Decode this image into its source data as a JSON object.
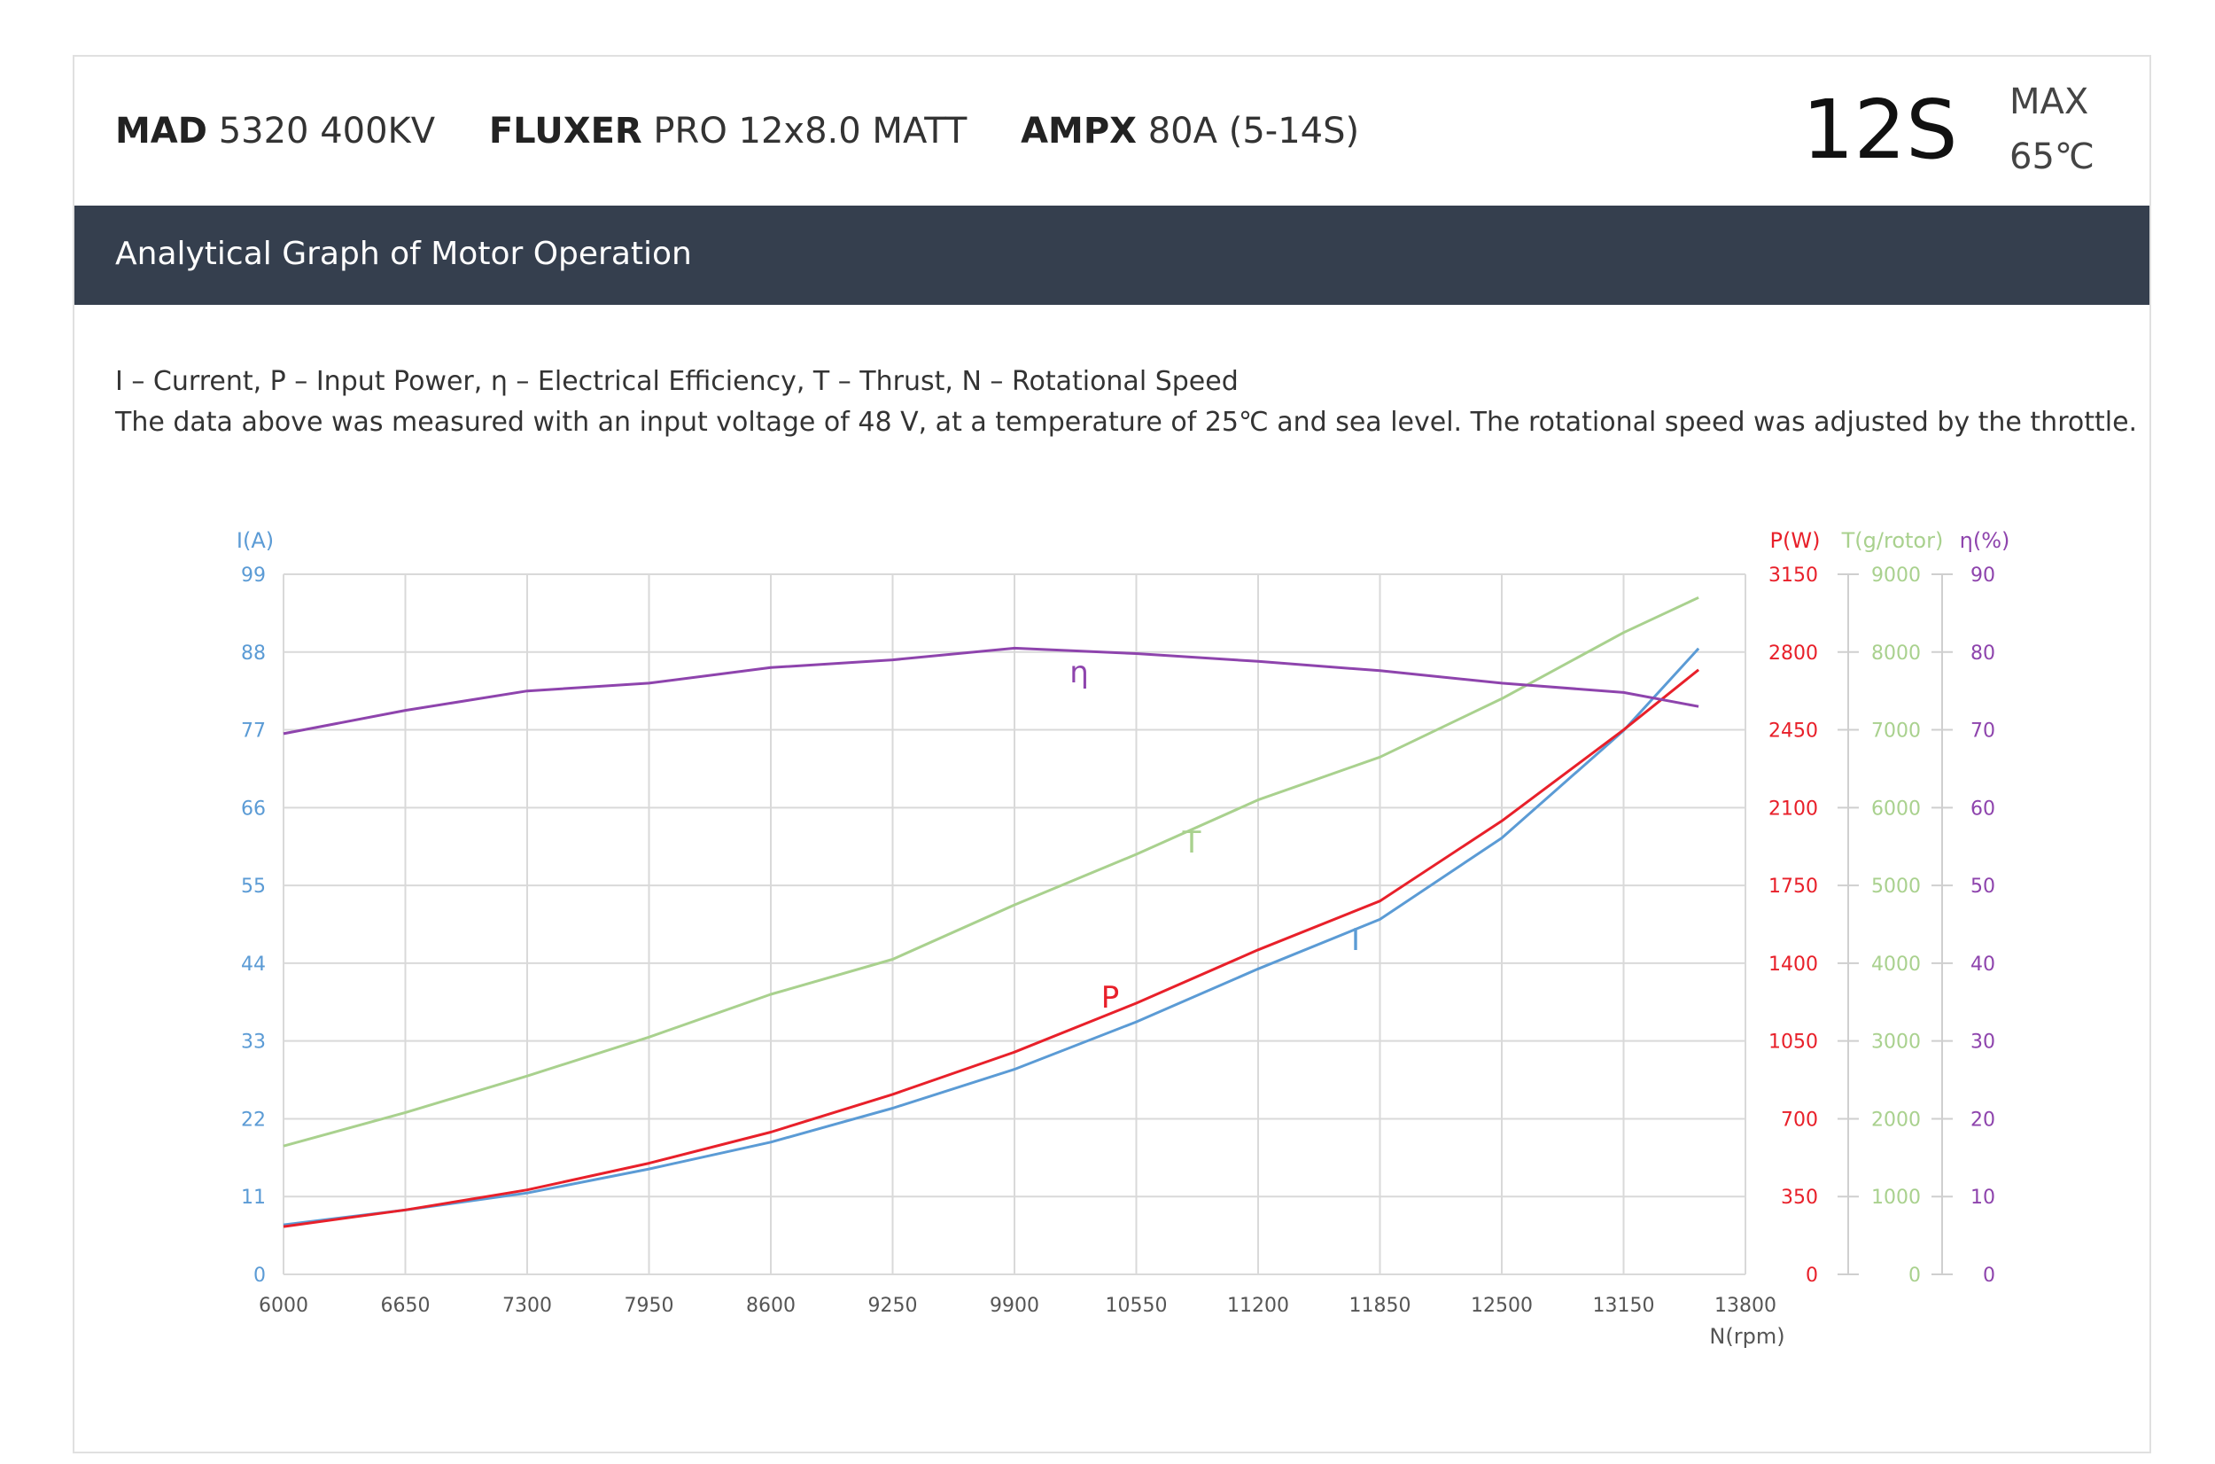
{
  "header": {
    "products": [
      {
        "brand": "MAD",
        "model": "5320 400KV"
      },
      {
        "brand": "FLUXER",
        "model": "PRO 12x8.0 MATT"
      },
      {
        "brand": "AMPX",
        "model": "80A (5-14S)"
      }
    ],
    "cells": "12S",
    "max_label": "MAX",
    "max_temp": "65℃"
  },
  "banner": {
    "title": "Analytical Graph of Motor Operation"
  },
  "notes": {
    "legend": "I – Current, P – Input Power, η – Electrical Efficiency, T – Thrust,   N – Rotational Speed",
    "conditions": "The data above was measured with an input voltage of 48 V, at a temperature of 25℃ and sea level. The rotational speed was adjusted by the throttle."
  },
  "colors": {
    "current": "#5b9bd5",
    "power": "#e8202a",
    "thrust": "#a9d18e",
    "efficiency": "#8e44ad",
    "banner": "#353f4e",
    "grid": "#d9d9d9"
  },
  "chart_data": {
    "type": "line",
    "xlabel": "N(rpm)",
    "xlim": [
      6000,
      13800
    ],
    "x_ticks": [
      "6000",
      "6650",
      "7300",
      "7950",
      "8600",
      "9250",
      "9900",
      "10550",
      "11200",
      "11850",
      "12500",
      "13150",
      "13800"
    ],
    "axes": {
      "current": {
        "label": "I(A)",
        "min": 0,
        "max": 99,
        "ticks": [
          "0",
          "11",
          "22",
          "33",
          "44",
          "55",
          "66",
          "77",
          "88",
          "99"
        ]
      },
      "power": {
        "label": "P(W)",
        "min": 0,
        "max": 3150,
        "ticks": [
          "0",
          "350",
          "700",
          "1050",
          "1400",
          "1750",
          "2100",
          "2450",
          "2800",
          "3150"
        ]
      },
      "thrust": {
        "label": "T(g/rotor)",
        "min": 0,
        "max": 9000,
        "ticks": [
          "0",
          "1000",
          "2000",
          "3000",
          "4000",
          "5000",
          "6000",
          "7000",
          "8000",
          "9000"
        ]
      },
      "efficiency": {
        "label": "η(%)",
        "min": 0,
        "max": 90,
        "ticks": [
          "0",
          "10",
          "20",
          "30",
          "40",
          "50",
          "60",
          "70",
          "80",
          "90"
        ]
      }
    },
    "grid": true,
    "series": [
      {
        "name": "I",
        "axis": "current",
        "x": [
          6000,
          6650,
          7300,
          7950,
          8600,
          9250,
          9900,
          10550,
          11200,
          11850,
          12500,
          13150,
          13550
        ],
        "values": [
          7.0,
          9.1,
          11.5,
          14.9,
          18.7,
          23.5,
          29.0,
          35.7,
          43.2,
          50.2,
          61.7,
          76.9,
          88.5
        ]
      },
      {
        "name": "P",
        "axis": "power",
        "x": [
          6000,
          6650,
          7300,
          7950,
          8600,
          9250,
          9900,
          10550,
          11200,
          11850,
          12500,
          13150,
          13550
        ],
        "values": [
          215,
          290,
          380,
          500,
          640,
          810,
          1000,
          1220,
          1460,
          1680,
          2040,
          2450,
          2720
        ]
      },
      {
        "name": "T",
        "axis": "thrust",
        "x": [
          6000,
          6650,
          7300,
          7950,
          8600,
          9250,
          9900,
          10550,
          11200,
          11850,
          12500,
          13150,
          13550
        ],
        "values": [
          1650,
          2080,
          2550,
          3050,
          3600,
          4050,
          4750,
          5400,
          6100,
          6650,
          7400,
          8250,
          8700
        ]
      },
      {
        "name": "η",
        "axis": "efficiency",
        "x": [
          6000,
          6650,
          7300,
          7950,
          8600,
          9250,
          9900,
          10550,
          11200,
          11850,
          12500,
          13150,
          13550
        ],
        "values": [
          69.5,
          72.5,
          75.0,
          76.0,
          78.0,
          79.0,
          80.5,
          79.8,
          78.8,
          77.6,
          76.0,
          74.8,
          73.0
        ]
      }
    ]
  }
}
